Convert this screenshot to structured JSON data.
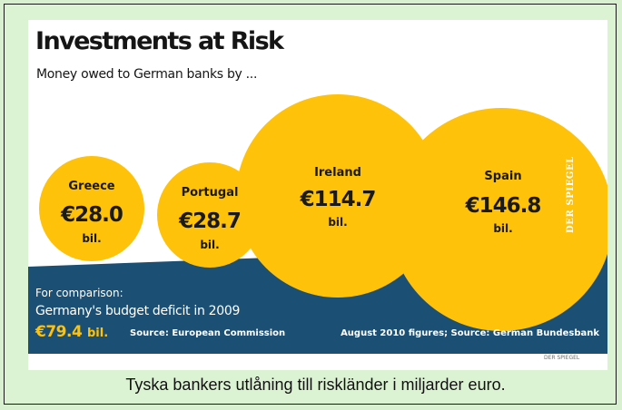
{
  "caption": "Tyska bankers utlåning till riskländer i miljarder euro.",
  "colors": {
    "bubble": "#ffc20a",
    "band": "#1b4f73",
    "comparison_value": "#ffc20a",
    "band_text": "#ffffff"
  },
  "chart_data": {
    "type": "bubble",
    "title": "Investments at Risk",
    "subtitle": "Money owed to German banks by ...",
    "unit": "bil.",
    "categories": [
      "Greece",
      "Portugal",
      "Ireland",
      "Spain"
    ],
    "values": [
      28.0,
      28.7,
      114.7,
      146.8
    ],
    "value_labels": [
      "€28.0",
      "€28.7",
      "€114.7",
      "€146.8"
    ],
    "comparison": {
      "label_line1": "For comparison:",
      "label_line2": "Germany's budget deficit in 2009",
      "value_label": "€79.4",
      "unit": "bil.",
      "value": 79.4
    },
    "sources": {
      "left": "Source: European Commission",
      "right": "August 2010 figures; Source: German Bundesbank"
    },
    "watermark": "DER SPIEGEL",
    "footer_credit": "DER SPIEGEL"
  }
}
